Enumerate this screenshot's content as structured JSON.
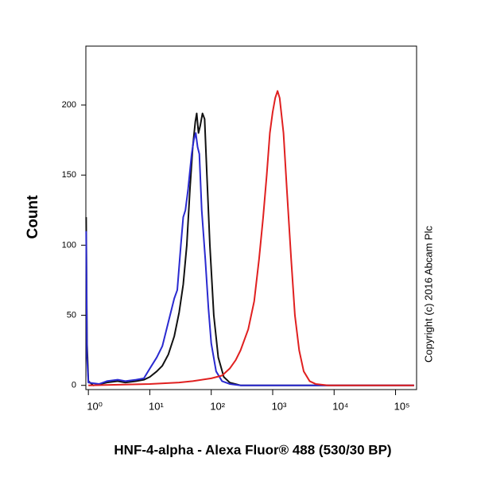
{
  "chart_data": {
    "type": "line",
    "xlabel": "HNF-4-alpha - Alexa Fluor® 488 (530/30 BP)",
    "ylabel": "Count",
    "annotation": "Copyright (c) 2016 Abcam Plc",
    "xscale": "log",
    "xlim": [
      0.91,
      220000
    ],
    "ylim": [
      -3,
      242
    ],
    "xticks": [
      {
        "value": 1,
        "label": "10⁰"
      },
      {
        "value": 10,
        "label": "10¹"
      },
      {
        "value": 100,
        "label": "10²"
      },
      {
        "value": 1000,
        "label": "10³"
      },
      {
        "value": 10000,
        "label": "10⁴"
      },
      {
        "value": 100000,
        "label": "10⁵"
      }
    ],
    "yticks": [
      0,
      50,
      100,
      150,
      200
    ],
    "series": [
      {
        "color": "#111111",
        "x": [
          0.92,
          0.95,
          1.0,
          1.2,
          1.6,
          2,
          3,
          4,
          6,
          8,
          10,
          13,
          16,
          20,
          25,
          30,
          35,
          40,
          45,
          50,
          55,
          58,
          62,
          66,
          72,
          78,
          85,
          95,
          110,
          130,
          160,
          200,
          300,
          1000,
          200000
        ],
        "values": [
          120,
          30,
          3,
          0,
          1,
          2,
          3,
          2,
          3,
          4,
          6,
          10,
          14,
          22,
          35,
          52,
          72,
          100,
          140,
          170,
          188,
          194,
          180,
          185,
          194,
          190,
          150,
          100,
          50,
          20,
          6,
          2,
          0,
          0,
          0
        ]
      },
      {
        "color": "#2a2ad0",
        "x": [
          0.92,
          0.95,
          1,
          1.5,
          2,
          3,
          4,
          6,
          8,
          10,
          13,
          16,
          20,
          25,
          28,
          32,
          35,
          38,
          42,
          48,
          52,
          56,
          60,
          64,
          70,
          80,
          90,
          100,
          120,
          150,
          200,
          300,
          200000
        ],
        "values": [
          110,
          20,
          2,
          1,
          3,
          4,
          3,
          4,
          5,
          12,
          20,
          28,
          45,
          62,
          68,
          100,
          120,
          125,
          140,
          165,
          175,
          180,
          170,
          165,
          125,
          90,
          55,
          30,
          10,
          3,
          1,
          0,
          0
        ]
      },
      {
        "color": "#e02020",
        "x": [
          1,
          10,
          30,
          50,
          100,
          150,
          200,
          250,
          300,
          400,
          500,
          600,
          700,
          800,
          900,
          1000,
          1100,
          1200,
          1300,
          1500,
          1700,
          2000,
          2300,
          2700,
          3200,
          4000,
          5000,
          8000,
          200000
        ],
        "values": [
          0,
          1,
          2,
          3,
          5,
          7,
          12,
          18,
          25,
          40,
          60,
          90,
          120,
          150,
          180,
          195,
          205,
          210,
          205,
          180,
          140,
          90,
          50,
          25,
          10,
          3,
          1,
          0,
          0
        ]
      }
    ]
  }
}
